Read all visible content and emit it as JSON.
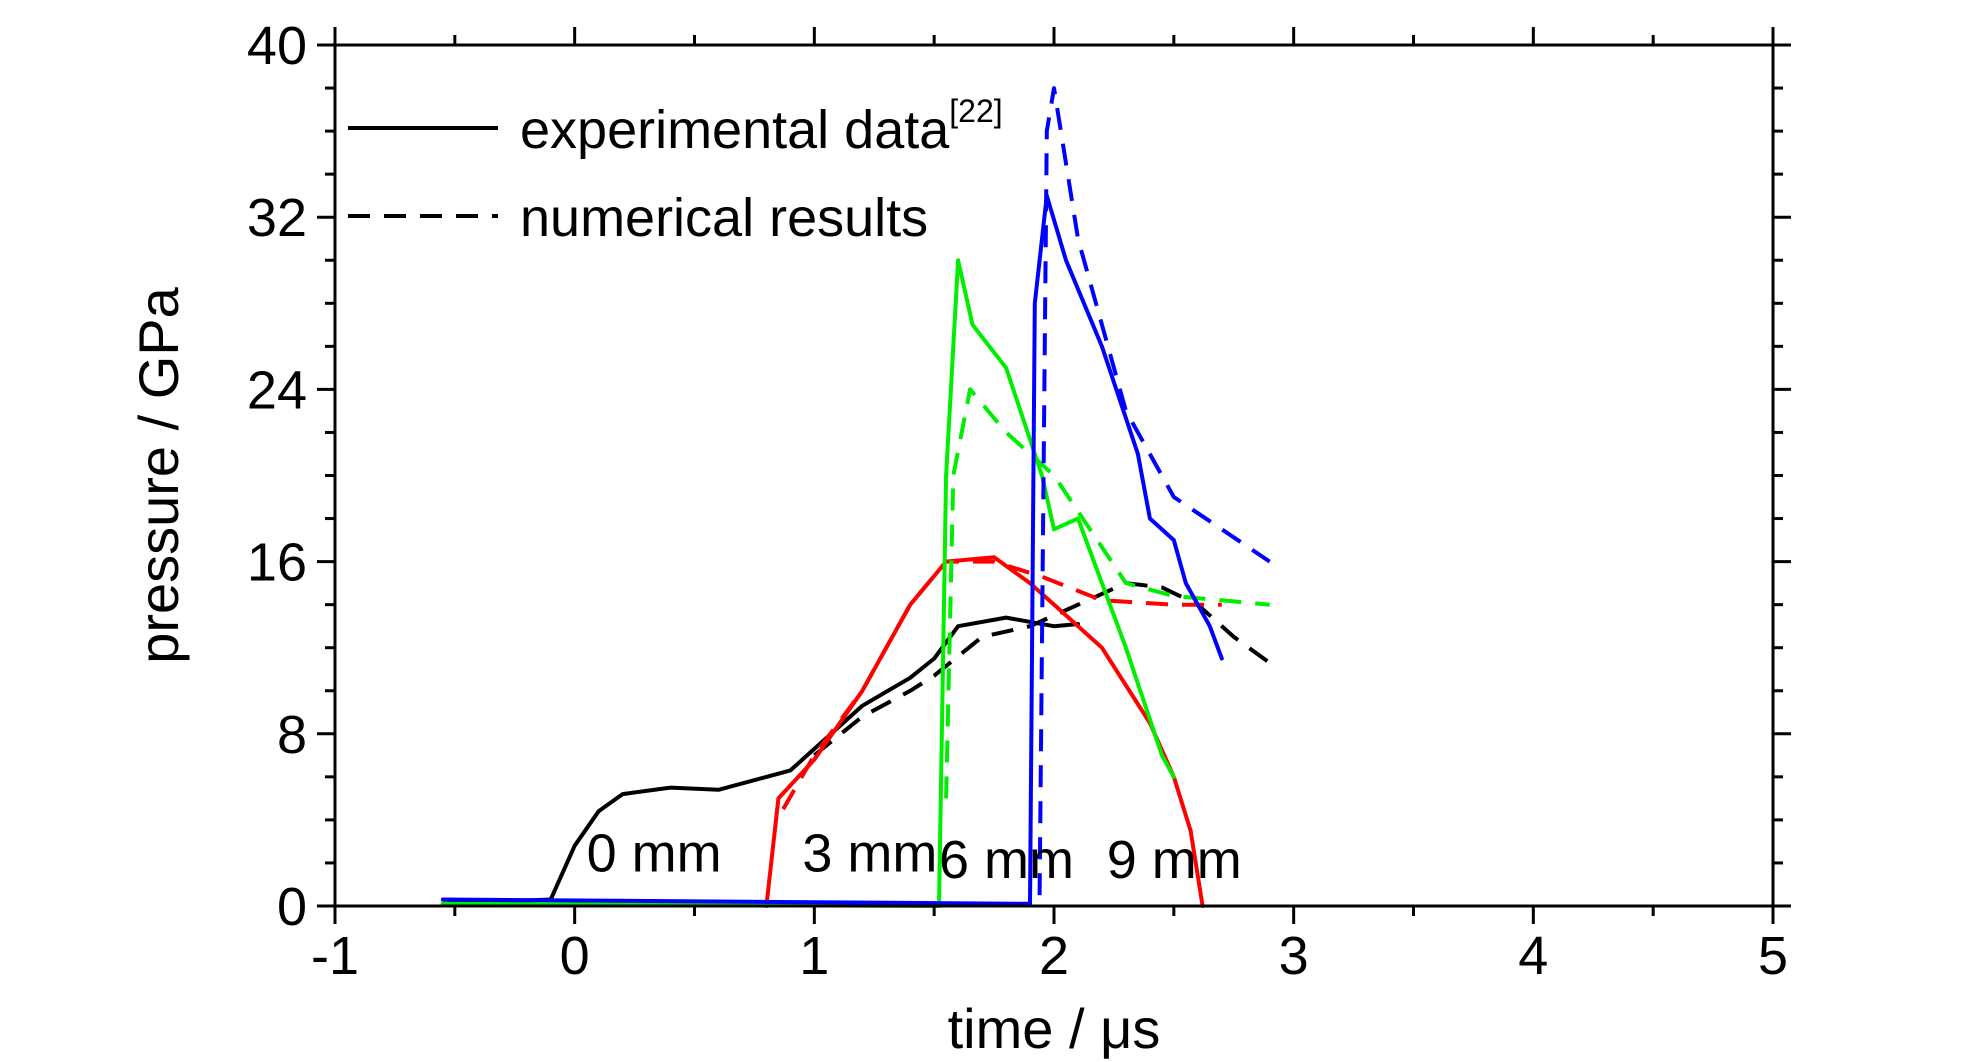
{
  "chart_data": {
    "type": "line",
    "xlabel": "time / μs",
    "ylabel": "pressure / GPa",
    "xlim": [
      -1,
      5
    ],
    "ylim": [
      0,
      40
    ],
    "xticks": [
      "-1",
      "0",
      "1",
      "2",
      "3",
      "4",
      "5"
    ],
    "yticks": [
      "0",
      "8",
      "16",
      "24",
      "32",
      "40"
    ],
    "grid": false,
    "legend": {
      "placement": "top-left",
      "entries": [
        {
          "style": "solid",
          "text": "experimental data",
          "superscript": "[22]"
        },
        {
          "style": "dashed",
          "text": "numerical results"
        }
      ]
    },
    "curve_labels": [
      {
        "text": "0 mm",
        "x": 0.05,
        "y": 1.6
      },
      {
        "text": "3 mm",
        "x": 0.95,
        "y": 1.6
      },
      {
        "text": "6 mm",
        "x": 1.52,
        "y": 1.3
      },
      {
        "text": "9 mm",
        "x": 2.22,
        "y": 1.3
      }
    ],
    "series": [
      {
        "color": "#000000",
        "style": "solid",
        "points": [
          [
            -0.55,
            0.1
          ],
          [
            -0.1,
            0.3
          ],
          [
            0,
            2.8
          ],
          [
            0.1,
            4.4
          ],
          [
            0.2,
            5.2
          ],
          [
            0.4,
            5.5
          ],
          [
            0.6,
            5.4
          ],
          [
            0.8,
            6.0
          ],
          [
            0.9,
            6.3
          ],
          [
            1.0,
            7.3
          ],
          [
            1.2,
            9.3
          ],
          [
            1.4,
            10.6
          ],
          [
            1.5,
            11.5
          ],
          [
            1.6,
            13.0
          ],
          [
            1.8,
            13.4
          ],
          [
            2.0,
            13.0
          ],
          [
            2.1,
            13.1
          ]
        ]
      },
      {
        "color": "#000000",
        "style": "dashed",
        "points": [
          [
            1.0,
            7.0
          ],
          [
            1.2,
            8.8
          ],
          [
            1.4,
            10.0
          ],
          [
            1.5,
            10.7
          ],
          [
            1.6,
            11.6
          ],
          [
            1.7,
            12.5
          ],
          [
            1.9,
            13.0
          ],
          [
            2.1,
            14.0
          ],
          [
            2.3,
            15.0
          ],
          [
            2.45,
            14.8
          ],
          [
            2.6,
            14.0
          ],
          [
            2.75,
            12.5
          ],
          [
            2.9,
            11.3
          ]
        ]
      },
      {
        "color": "#ff0000",
        "style": "solid",
        "points": [
          [
            0.8,
            0.0
          ],
          [
            0.85,
            5.0
          ],
          [
            1.0,
            6.8
          ],
          [
            1.2,
            10.0
          ],
          [
            1.4,
            14.0
          ],
          [
            1.55,
            16.0
          ],
          [
            1.75,
            16.2
          ],
          [
            1.9,
            15.0
          ],
          [
            2.05,
            13.5
          ],
          [
            2.2,
            12.0
          ],
          [
            2.4,
            8.5
          ],
          [
            2.5,
            6.0
          ],
          [
            2.57,
            3.5
          ],
          [
            2.62,
            0.0
          ]
        ]
      },
      {
        "color": "#ff0000",
        "style": "dashed",
        "points": [
          [
            0.87,
            4.5
          ],
          [
            1.0,
            7.0
          ],
          [
            1.2,
            10.0
          ],
          [
            1.4,
            14.0
          ],
          [
            1.55,
            16.0
          ],
          [
            1.75,
            16.0
          ],
          [
            1.95,
            15.3
          ],
          [
            2.2,
            14.2
          ],
          [
            2.5,
            14.0
          ],
          [
            2.7,
            14.0
          ]
        ]
      },
      {
        "color": "#00ee00",
        "style": "solid",
        "points": [
          [
            -0.55,
            0.1
          ],
          [
            1.52,
            0.0
          ],
          [
            1.55,
            20.0
          ],
          [
            1.6,
            30.0
          ],
          [
            1.66,
            27.0
          ],
          [
            1.8,
            25.0
          ],
          [
            1.95,
            20.0
          ],
          [
            2.0,
            17.5
          ],
          [
            2.1,
            18.0
          ],
          [
            2.2,
            15.0
          ],
          [
            2.3,
            12.0
          ],
          [
            2.45,
            7.0
          ],
          [
            2.5,
            6.0
          ]
        ]
      },
      {
        "color": "#00ee00",
        "style": "dashed",
        "points": [
          [
            1.55,
            5.0
          ],
          [
            1.58,
            20.0
          ],
          [
            1.65,
            24.0
          ],
          [
            1.8,
            22.0
          ],
          [
            2.0,
            20.0
          ],
          [
            2.15,
            17.5
          ],
          [
            2.3,
            15.0
          ],
          [
            2.5,
            14.4
          ],
          [
            2.7,
            14.2
          ],
          [
            2.9,
            14.0
          ]
        ]
      },
      {
        "color": "#0000ff",
        "style": "solid",
        "points": [
          [
            -0.55,
            0.3
          ],
          [
            1.9,
            0.1
          ],
          [
            1.92,
            28.0
          ],
          [
            1.97,
            33.0
          ],
          [
            2.05,
            30.0
          ],
          [
            2.2,
            26.0
          ],
          [
            2.35,
            21.0
          ],
          [
            2.4,
            18.0
          ],
          [
            2.5,
            17.0
          ],
          [
            2.55,
            15.0
          ],
          [
            2.65,
            13.0
          ],
          [
            2.7,
            11.5
          ]
        ]
      },
      {
        "color": "#0000ff",
        "style": "dashed",
        "points": [
          [
            1.94,
            0.5
          ],
          [
            1.97,
            36.0
          ],
          [
            2.0,
            38.0
          ],
          [
            2.1,
            31.0
          ],
          [
            2.3,
            23.0
          ],
          [
            2.5,
            19.0
          ],
          [
            2.7,
            17.5
          ],
          [
            2.9,
            16.0
          ]
        ]
      }
    ]
  }
}
